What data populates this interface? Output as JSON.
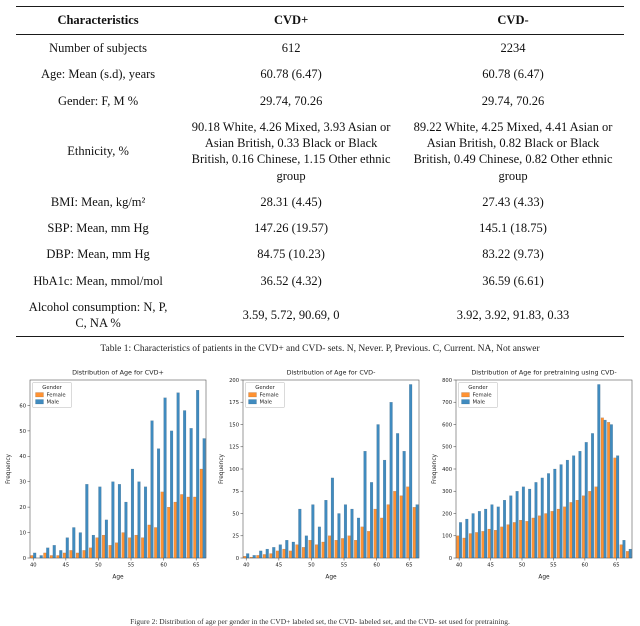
{
  "page": {
    "table_caption": "Table 1: Characteristics of patients in the CVD+ and CVD- sets. N, Never. P, Previous. C, Current. NA, Not answer",
    "figure_caption": "Figure 2: Distribution of age per gender in the CVD+ labeled set, the CVD- labeled set, and the CVD- set used for pretraining."
  },
  "table": {
    "headers": [
      "Characteristics",
      "CVD+",
      "CVD-"
    ],
    "rows": [
      {
        "label": "Number of subjects",
        "cvd_pos": "612",
        "cvd_neg": "2234"
      },
      {
        "label": "Age: Mean (s.d), years",
        "cvd_pos": "60.78 (6.47)",
        "cvd_neg": "60.78 (6.47)"
      },
      {
        "label": "Gender: F, M %",
        "cvd_pos": "29.74, 70.26",
        "cvd_neg": "29.74, 70.26"
      },
      {
        "label": "Ethnicity, %",
        "cvd_pos": "90.18 White,  4.26 Mixed,  3.93 Asian or Asian British, 0.33 Black or Black British, 0.16 Chinese, 1.15 Other ethnic group",
        "cvd_neg": "89.22 White,  4.25 Mixed,  4.41 Asian or Asian British, 0.82 Black or Black British, 0.49 Chinese, 0.82 Other ethnic group"
      },
      {
        "label": "BMI: Mean, kg/m²",
        "cvd_pos": "28.31 (4.45)",
        "cvd_neg": "27.43 (4.33)"
      },
      {
        "label": "SBP: Mean, mm Hg",
        "cvd_pos": "147.26 (19.57)",
        "cvd_neg": "145.1 (18.75)"
      },
      {
        "label": "DBP: Mean, mm Hg",
        "cvd_pos": "84.75 (10.23)",
        "cvd_neg": "83.22  (9.73)"
      },
      {
        "label": "HbA1c: Mean, mmol/mol",
        "cvd_pos": "36.52 (4.32)",
        "cvd_neg": "36.59  (6.61)"
      },
      {
        "label": "Alcohol consumption: N, P, C, NA %",
        "cvd_pos": "3.59, 5.72, 90.69, 0",
        "cvd_neg": "3.92, 3.92, 91.83, 0.33"
      }
    ]
  },
  "chart_data": [
    {
      "type": "bar",
      "title": "Distribution of Age for CVD+",
      "xlabel": "Age",
      "ylabel": "Frequency",
      "legend_title": "Gender",
      "x": [
        40,
        41,
        42,
        43,
        44,
        45,
        46,
        47,
        48,
        49,
        50,
        51,
        52,
        53,
        54,
        55,
        56,
        57,
        58,
        59,
        60,
        61,
        62,
        63,
        64,
        65,
        66
      ],
      "series": [
        {
          "name": "Female",
          "color": "#ff7f0e",
          "values": [
            1,
            0,
            2,
            1,
            1,
            2,
            3,
            2,
            3,
            4,
            8,
            9,
            5,
            6,
            10,
            8,
            9,
            8,
            13,
            12,
            26,
            20,
            22,
            25,
            24,
            24,
            35
          ]
        },
        {
          "name": "Male",
          "color": "#1f77b4",
          "values": [
            2,
            1,
            4,
            5,
            3,
            8,
            12,
            10,
            29,
            9,
            28,
            15,
            30,
            29,
            22,
            35,
            30,
            28,
            54,
            43,
            63,
            50,
            65,
            58,
            51,
            66,
            47
          ]
        }
      ],
      "ylim": [
        0,
        70
      ],
      "yticks": [
        0,
        10,
        20,
        30,
        40,
        50,
        60
      ],
      "xticks": [
        40,
        45,
        50,
        55,
        60,
        65
      ],
      "grid": false,
      "legend_position": "upper-left"
    },
    {
      "type": "bar",
      "title": "Distribution of Age for CVD-",
      "xlabel": "Age",
      "ylabel": "Frequency",
      "legend_title": "Gender",
      "x": [
        40,
        41,
        42,
        43,
        44,
        45,
        46,
        47,
        48,
        49,
        50,
        51,
        52,
        53,
        54,
        55,
        56,
        57,
        58,
        59,
        60,
        61,
        62,
        63,
        64,
        65,
        66
      ],
      "series": [
        {
          "name": "Female",
          "color": "#ff7f0e",
          "values": [
            2,
            1,
            3,
            4,
            5,
            8,
            10,
            8,
            15,
            12,
            20,
            15,
            18,
            25,
            20,
            22,
            25,
            20,
            35,
            30,
            55,
            45,
            60,
            75,
            70,
            80,
            57
          ]
        },
        {
          "name": "Male",
          "color": "#1f77b4",
          "values": [
            5,
            3,
            8,
            10,
            12,
            15,
            20,
            18,
            55,
            25,
            60,
            35,
            65,
            90,
            50,
            60,
            55,
            45,
            120,
            85,
            150,
            110,
            175,
            140,
            120,
            195,
            60
          ]
        }
      ],
      "ylim": [
        0,
        200
      ],
      "yticks": [
        0,
        25,
        50,
        75,
        100,
        125,
        150,
        175,
        200
      ],
      "xticks": [
        40,
        45,
        50,
        55,
        60,
        65
      ],
      "grid": false,
      "legend_position": "upper-left"
    },
    {
      "type": "bar",
      "title": "Distribution of Age for pretraining using CVD-",
      "xlabel": "Age",
      "ylabel": "Frequency",
      "legend_title": "Gender",
      "x": [
        40,
        41,
        42,
        43,
        44,
        45,
        46,
        47,
        48,
        49,
        50,
        51,
        52,
        53,
        54,
        55,
        56,
        57,
        58,
        59,
        60,
        61,
        62,
        63,
        64,
        65,
        66,
        67
      ],
      "series": [
        {
          "name": "Female",
          "color": "#ff7f0e",
          "values": [
            100,
            90,
            110,
            115,
            120,
            130,
            125,
            140,
            150,
            160,
            170,
            165,
            180,
            190,
            200,
            210,
            220,
            230,
            250,
            260,
            280,
            300,
            320,
            630,
            610,
            450,
            60,
            30
          ]
        },
        {
          "name": "Male",
          "color": "#1f77b4",
          "values": [
            160,
            175,
            200,
            210,
            220,
            240,
            230,
            260,
            280,
            300,
            320,
            310,
            340,
            360,
            380,
            400,
            420,
            440,
            460,
            480,
            520,
            560,
            780,
            620,
            600,
            460,
            80,
            40
          ]
        }
      ],
      "ylim": [
        0,
        800
      ],
      "yticks": [
        0,
        100,
        200,
        300,
        400,
        500,
        600,
        700,
        800
      ],
      "xticks": [
        40,
        45,
        50,
        55,
        60,
        65
      ],
      "grid": false,
      "legend_position": "upper-left"
    }
  ]
}
